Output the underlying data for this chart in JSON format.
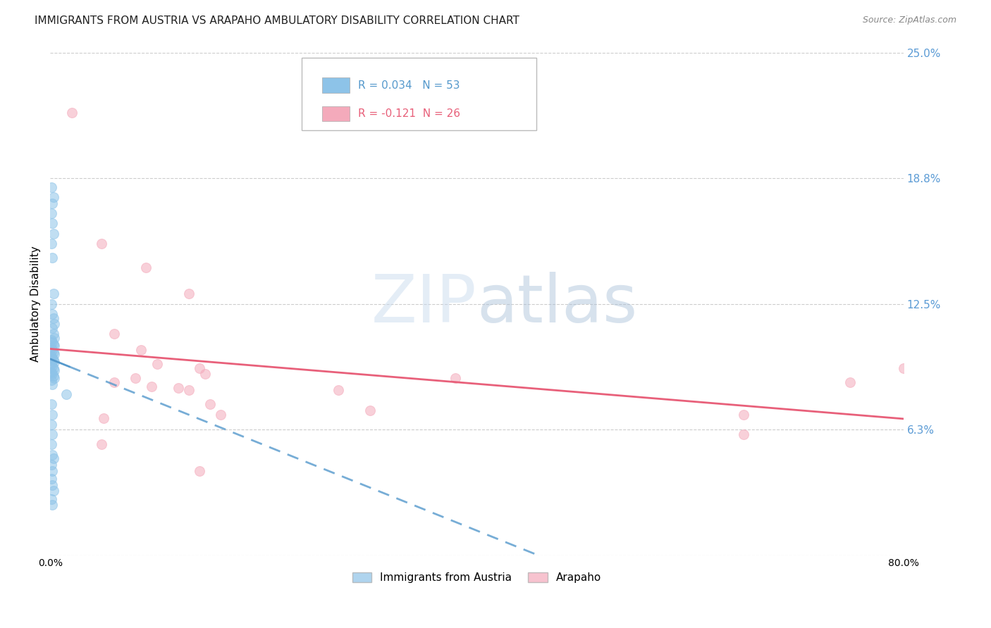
{
  "title": "IMMIGRANTS FROM AUSTRIA VS ARAPAHO AMBULATORY DISABILITY CORRELATION CHART",
  "source": "Source: ZipAtlas.com",
  "ylabel": "Ambulatory Disability",
  "xlim": [
    0.0,
    0.8
  ],
  "ylim": [
    0.0,
    0.25
  ],
  "yticks": [
    0.0,
    0.0625,
    0.125,
    0.1875,
    0.25
  ],
  "ytick_labels": [
    "",
    "6.3%",
    "12.5%",
    "18.8%",
    "25.0%"
  ],
  "xticks": [
    0.0,
    0.2,
    0.4,
    0.6,
    0.8
  ],
  "xtick_labels": [
    "0.0%",
    "",
    "",
    "",
    "80.0%"
  ],
  "watermark": "ZIPatlas",
  "blue_color": "#8DC3E8",
  "pink_color": "#F4AABB",
  "blue_line_color": "#5599CC",
  "pink_line_color": "#E8607A",
  "blue_scatter": [
    [
      0.001,
      0.155
    ],
    [
      0.002,
      0.148
    ],
    [
      0.003,
      0.13
    ],
    [
      0.001,
      0.125
    ],
    [
      0.002,
      0.12
    ],
    [
      0.003,
      0.118
    ],
    [
      0.004,
      0.115
    ],
    [
      0.002,
      0.113
    ],
    [
      0.003,
      0.11
    ],
    [
      0.004,
      0.108
    ],
    [
      0.001,
      0.107
    ],
    [
      0.002,
      0.106
    ],
    [
      0.003,
      0.105
    ],
    [
      0.004,
      0.104
    ],
    [
      0.001,
      0.103
    ],
    [
      0.002,
      0.102
    ],
    [
      0.003,
      0.101
    ],
    [
      0.004,
      0.1
    ],
    [
      0.001,
      0.099
    ],
    [
      0.002,
      0.098
    ],
    [
      0.003,
      0.097
    ],
    [
      0.004,
      0.096
    ],
    [
      0.001,
      0.095
    ],
    [
      0.002,
      0.094
    ],
    [
      0.003,
      0.093
    ],
    [
      0.004,
      0.092
    ],
    [
      0.001,
      0.091
    ],
    [
      0.002,
      0.09
    ],
    [
      0.003,
      0.089
    ],
    [
      0.004,
      0.088
    ],
    [
      0.001,
      0.087
    ],
    [
      0.002,
      0.085
    ],
    [
      0.001,
      0.075
    ],
    [
      0.002,
      0.07
    ],
    [
      0.001,
      0.065
    ],
    [
      0.002,
      0.06
    ],
    [
      0.001,
      0.055
    ],
    [
      0.002,
      0.05
    ],
    [
      0.003,
      0.048
    ],
    [
      0.001,
      0.045
    ],
    [
      0.002,
      0.042
    ],
    [
      0.001,
      0.038
    ],
    [
      0.002,
      0.035
    ],
    [
      0.003,
      0.032
    ],
    [
      0.001,
      0.028
    ],
    [
      0.002,
      0.025
    ],
    [
      0.015,
      0.08
    ],
    [
      0.001,
      0.17
    ],
    [
      0.002,
      0.165
    ],
    [
      0.003,
      0.16
    ],
    [
      0.002,
      0.175
    ],
    [
      0.003,
      0.178
    ],
    [
      0.001,
      0.183
    ]
  ],
  "pink_scatter": [
    [
      0.02,
      0.22
    ],
    [
      0.048,
      0.155
    ],
    [
      0.09,
      0.143
    ],
    [
      0.13,
      0.13
    ],
    [
      0.06,
      0.11
    ],
    [
      0.085,
      0.102
    ],
    [
      0.1,
      0.095
    ],
    [
      0.14,
      0.093
    ],
    [
      0.145,
      0.09
    ],
    [
      0.08,
      0.088
    ],
    [
      0.06,
      0.086
    ],
    [
      0.095,
      0.084
    ],
    [
      0.12,
      0.083
    ],
    [
      0.13,
      0.082
    ],
    [
      0.27,
      0.082
    ],
    [
      0.38,
      0.088
    ],
    [
      0.15,
      0.075
    ],
    [
      0.05,
      0.068
    ],
    [
      0.3,
      0.072
    ],
    [
      0.16,
      0.07
    ],
    [
      0.048,
      0.055
    ],
    [
      0.65,
      0.07
    ],
    [
      0.75,
      0.086
    ],
    [
      0.8,
      0.093
    ],
    [
      0.65,
      0.06
    ],
    [
      0.14,
      0.042
    ]
  ],
  "grid_color": "#CCCCCC",
  "background_color": "#FFFFFF",
  "title_fontsize": 11,
  "axis_label_fontsize": 11,
  "tick_fontsize": 10,
  "right_tick_color": "#5B9BD5"
}
